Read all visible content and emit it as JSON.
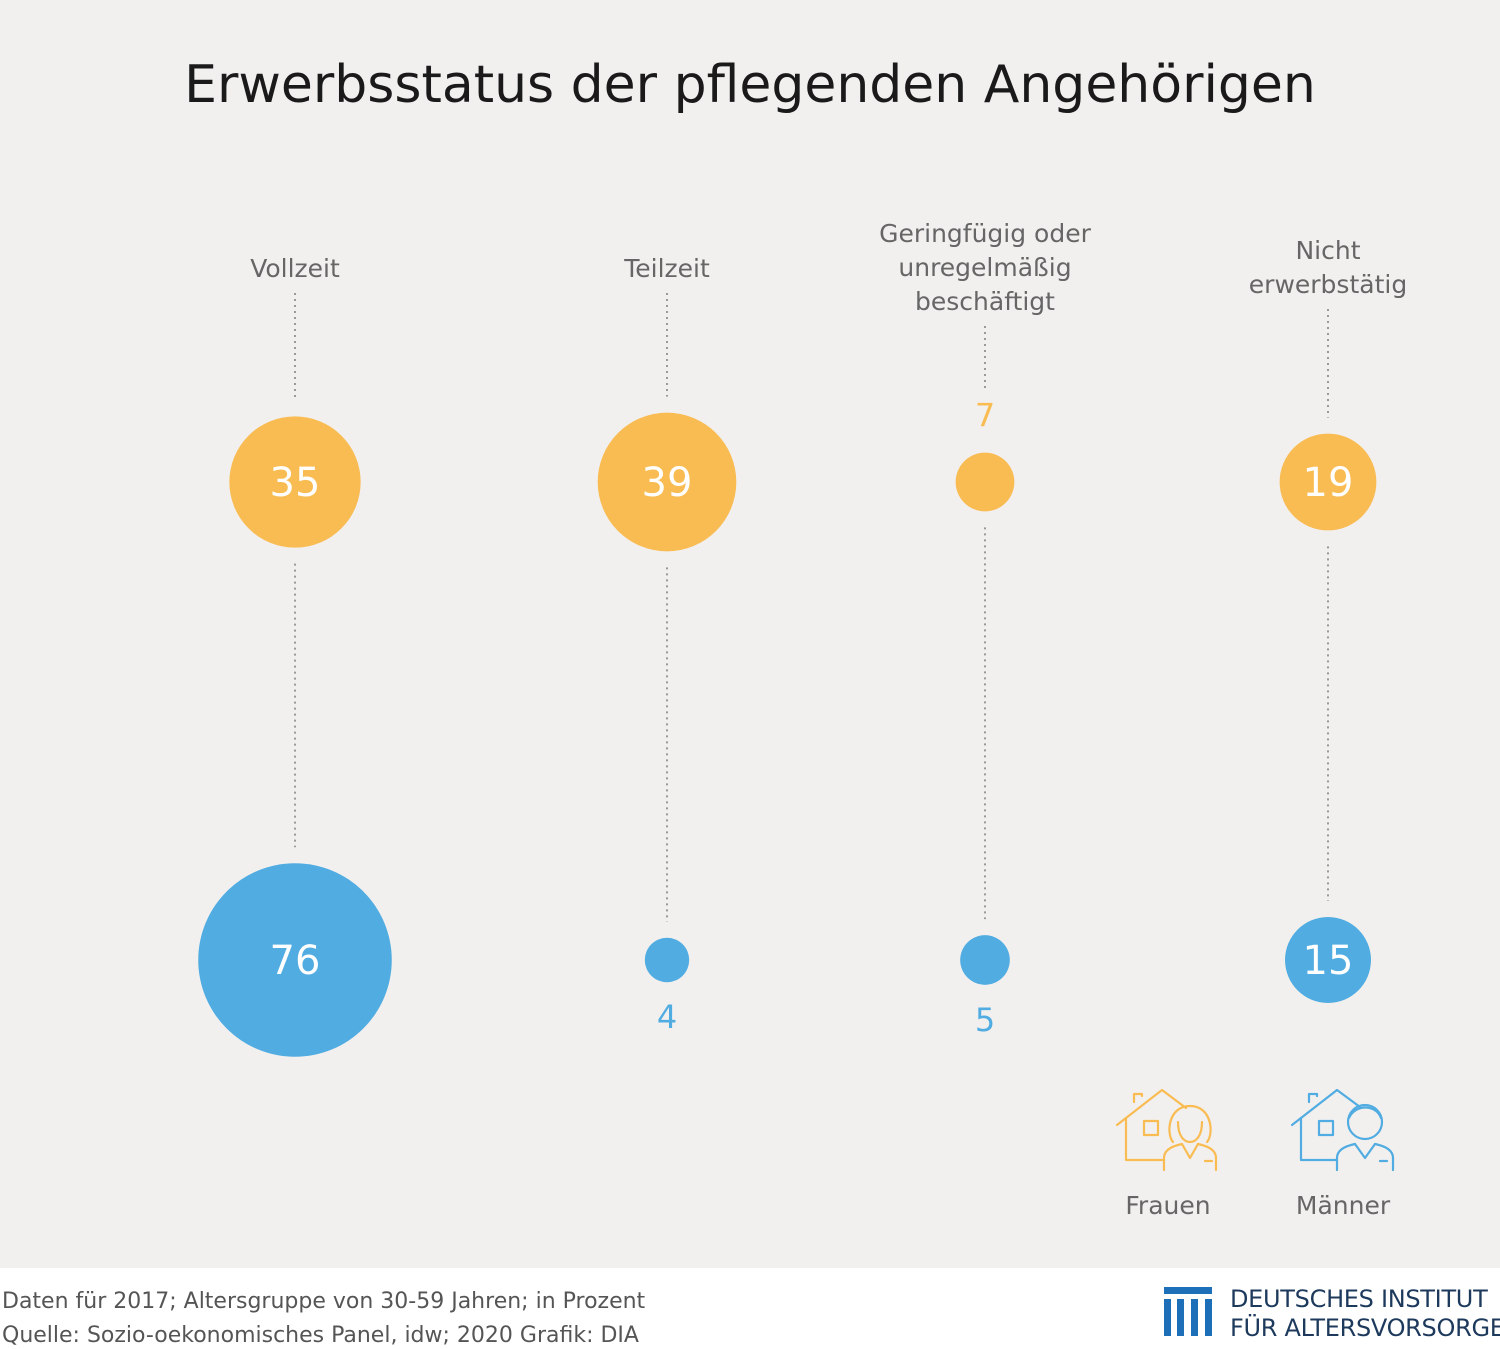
{
  "title": "Erwerbsstatus der pflegenden Angehörigen",
  "footer": {
    "note": "Daten für 2017; Altersgruppe von 30-59 Jahren; in Prozent",
    "source": "Quelle: Sozio-oekonomisches Panel, idw; 2020  Grafik: DIA"
  },
  "brand": {
    "line1": "DEUTSCHES INSTITUT",
    "line2": "FÜR ALTERSVORSORGE"
  },
  "colors": {
    "frauen": "#f9bc53",
    "maenner": "#51ace1",
    "background": "#f2f0ef",
    "label": "#666666",
    "brand": "#1d6fb8"
  },
  "legend_icons": {
    "frauen": "house-woman-icon",
    "maenner": "house-man-icon"
  },
  "chart_data": {
    "type": "bubble",
    "title": "Erwerbsstatus der pflegenden Angehörigen",
    "categories": [
      [
        "Vollzeit"
      ],
      [
        "Teilzeit"
      ],
      [
        "Geringfügig oder",
        "unregelmäßig",
        "beschäftigt"
      ],
      [
        "Nicht",
        "erwerbstätig"
      ]
    ],
    "series": [
      {
        "name": "Frauen",
        "values": [
          35,
          39,
          7,
          19
        ]
      },
      {
        "name": "Männer",
        "values": [
          76,
          4,
          5,
          15
        ]
      }
    ],
    "unit": "in Prozent"
  }
}
